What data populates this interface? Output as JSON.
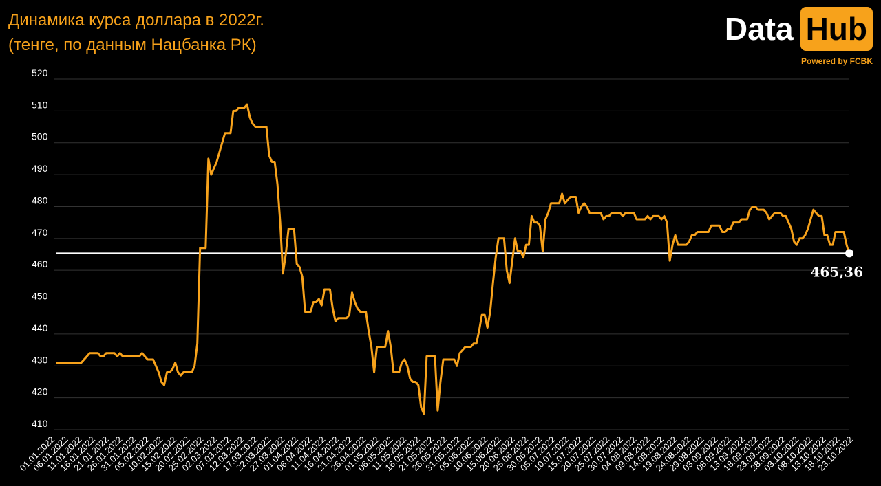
{
  "title": {
    "line1": "Динамика курса доллара в 2022г.",
    "line2": "(тенге, по данным Нацбанка РК)"
  },
  "logo": {
    "data": "Data",
    "hub": "Hub",
    "tagline": "Powered by FCBK"
  },
  "colors": {
    "background": "#000000",
    "line": "#F7A21B",
    "reference": "#FFFFFF",
    "grid": "#333333"
  },
  "chart_data": {
    "type": "line",
    "ylim": [
      410,
      520
    ],
    "yticks": [
      410,
      420,
      430,
      440,
      450,
      460,
      470,
      480,
      490,
      500,
      510,
      520
    ],
    "grid": "horizontal",
    "reference_line": {
      "value": 465.36,
      "label": "465,36"
    },
    "x_tick_labels": [
      "01.01.2022",
      "06.01.2022",
      "11.01.2022",
      "16.01.2022",
      "21.01.2022",
      "26.01.2022",
      "31.01.2022",
      "05.02.2022",
      "10.02.2022",
      "15.02.2022",
      "20.02.2022",
      "25.02.2022",
      "02.03.2022",
      "07.03.2022",
      "12.03.2022",
      "17.03.2022",
      "22.03.2022",
      "27.03.2022",
      "01.04.2022",
      "06.04.2022",
      "11.04.2022",
      "16.04.2022",
      "21.04.2022",
      "26.04.2022",
      "01.05.2022",
      "06.05.2022",
      "11.05.2022",
      "16.05.2022",
      "21.05.2022",
      "26.05.2022",
      "31.05.2022",
      "05.06.2022",
      "10.06.2022",
      "15.06.2022",
      "20.06.2022",
      "25.06.2022",
      "30.06.2022",
      "05.07.2022",
      "10.07.2022",
      "15.07.2022",
      "20.07.2022",
      "25.07.2022",
      "30.07.2022",
      "04.08.2022",
      "09.08.2022",
      "14.08.2022",
      "19.08.2022",
      "24.08.2022",
      "29.08.2022",
      "03.09.2022",
      "08.09.2022",
      "13.09.2022",
      "18.09.2022",
      "23.09.2022",
      "28.09.2022",
      "03.10.2022",
      "08.10.2022",
      "13.10.2022",
      "18.10.2022",
      "23.10.2022"
    ],
    "series": [
      {
        "values": [
          431,
          431,
          431,
          431,
          431,
          431,
          431,
          431,
          431,
          431,
          432,
          433,
          434,
          434,
          434,
          434,
          433,
          433,
          434,
          434,
          434,
          434,
          433,
          434,
          433,
          433,
          433,
          433,
          433,
          433,
          433,
          434,
          433,
          432,
          432,
          432,
          430,
          428,
          425,
          424,
          428,
          428,
          429,
          431,
          428,
          427,
          428,
          428,
          428,
          428,
          430,
          437,
          467,
          467,
          467,
          495,
          490,
          492,
          494,
          497,
          500,
          503,
          503,
          503,
          510,
          510,
          511,
          511,
          511,
          512,
          508,
          506,
          505,
          505,
          505,
          505,
          505,
          496,
          494,
          494,
          487,
          475,
          459,
          465,
          473,
          473,
          473,
          462,
          461,
          458,
          447,
          447,
          447,
          450,
          450,
          451,
          449,
          454,
          454,
          454,
          448,
          444,
          445,
          445,
          445,
          445,
          446,
          453,
          450,
          448,
          447,
          447,
          447,
          441,
          436,
          428,
          436,
          436,
          436,
          436,
          441,
          436,
          428,
          428,
          428,
          431,
          432,
          430,
          426,
          425,
          425,
          424,
          417,
          415,
          433,
          433,
          433,
          433,
          416,
          425,
          432,
          432,
          432,
          432,
          432,
          430,
          434,
          435,
          436,
          436,
          436,
          437,
          437,
          441,
          446,
          446,
          442,
          447,
          456,
          464,
          470,
          470,
          470,
          460,
          456,
          463,
          470,
          466,
          466,
          464,
          468,
          468,
          477,
          475,
          475,
          474,
          466,
          476,
          478,
          481,
          481,
          481,
          481,
          484,
          481,
          482,
          483,
          483,
          483,
          478,
          480,
          481,
          480,
          478,
          478,
          478,
          478,
          478,
          476,
          477,
          477,
          478,
          478,
          478,
          478,
          477,
          478,
          478,
          478,
          478,
          476,
          476,
          476,
          476,
          477,
          476,
          477,
          477,
          477,
          476,
          477,
          475,
          463,
          468,
          471,
          468,
          468,
          468,
          468,
          469,
          471,
          471,
          472,
          472,
          472,
          472,
          472,
          474,
          474,
          474,
          474,
          472,
          472,
          473,
          473,
          475,
          475,
          475,
          476,
          476,
          476,
          479,
          480,
          480,
          479,
          479,
          479,
          478,
          476,
          477,
          478,
          478,
          478,
          477,
          477,
          475,
          473,
          469,
          468,
          470,
          470,
          471,
          473,
          476,
          479,
          478,
          477,
          477,
          471,
          471,
          468,
          468,
          472,
          472,
          472,
          472,
          468,
          465
        ]
      }
    ]
  }
}
